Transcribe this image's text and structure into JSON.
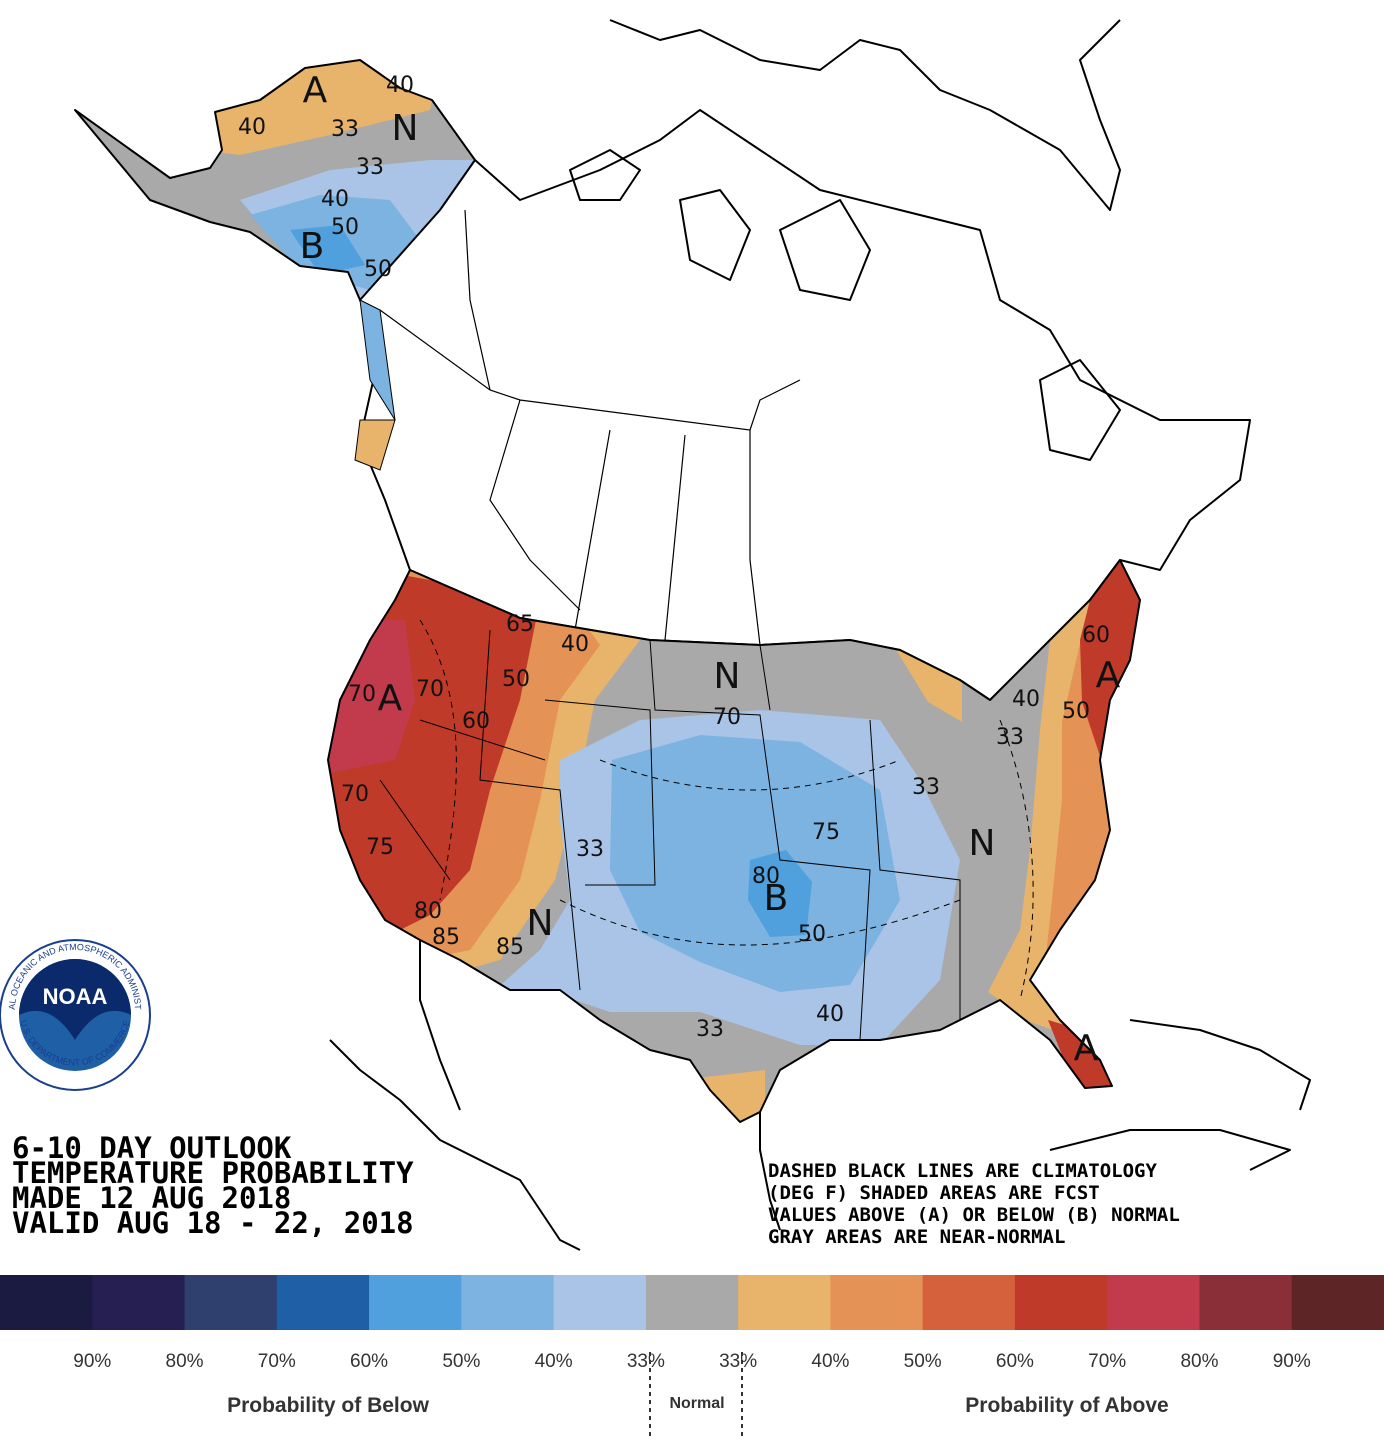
{
  "map_labels": [
    "A",
    "40",
    "33",
    "N",
    "40",
    "33",
    "40",
    "50",
    "B",
    "50",
    "A",
    "70",
    "70",
    "60",
    "50",
    "40",
    "65",
    "70",
    "75",
    "80",
    "85",
    "85",
    "N",
    "33",
    "N",
    "70",
    "75",
    "B",
    "80",
    "50",
    "40",
    "33",
    "33",
    "N",
    "33",
    "40",
    "50",
    "60",
    "A",
    "A"
  ],
  "title_block": {
    "lines": [
      "6-10 DAY OUTLOOK",
      "TEMPERATURE PROBABILITY",
      "MADE  12 AUG 2018",
      "VALID   AUG 18 - 22, 2018"
    ]
  },
  "notes": {
    "lines": [
      "DASHED BLACK LINES ARE CLIMATOLOGY",
      "(DEG F) SHADED AREAS ARE FCST",
      "VALUES ABOVE (A) OR BELOW (B) NORMAL",
      "GRAY AREAS ARE NEAR-NORMAL"
    ]
  },
  "logo": {
    "text": "NOAA",
    "ring_top": "NATIONAL OCEANIC AND ATMOSPHERIC ADMINISTRATION",
    "ring_bottom": "U.S. DEPARTMENT OF COMMERCE"
  },
  "legend": {
    "colors": [
      "#1b1a40",
      "#251f52",
      "#2f3f6e",
      "#1f5fa6",
      "#4fa0dc",
      "#7db3e0",
      "#a9c4e6",
      "#a9a9a9",
      "#e8b36a",
      "#e49255",
      "#d4603c",
      "#c03a2a",
      "#c23b4c",
      "#8a2e37",
      "#5e2526"
    ],
    "tick_labels": [
      "90%",
      "80%",
      "70%",
      "60%",
      "50%",
      "40%",
      "33%",
      "33%",
      "40%",
      "50%",
      "60%",
      "70%",
      "80%",
      "90%"
    ],
    "below_title": "Probability of Below",
    "normal_title": "Normal",
    "above_title": "Probability of Above"
  }
}
